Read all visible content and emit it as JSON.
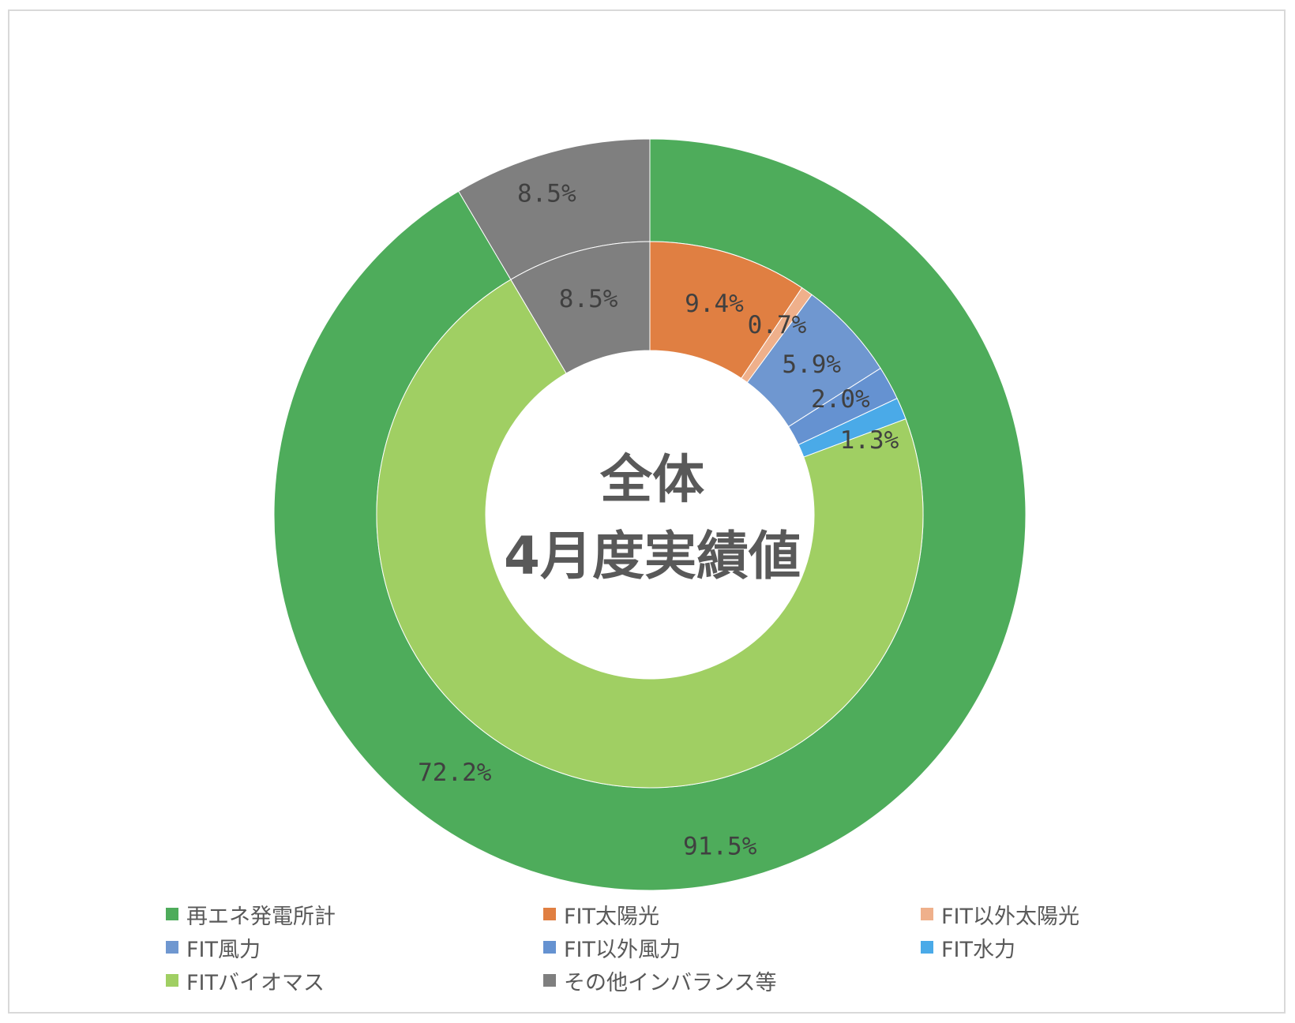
{
  "chart_data": {
    "type": "pie",
    "style": "nested-donut",
    "center_text": [
      "全体",
      "4月度実績値"
    ],
    "rings": [
      {
        "ring": "outer",
        "slices": [
          {
            "name": "再エネ発電所計",
            "value": 91.5,
            "label": "91.5%",
            "color": "#4eac5b"
          },
          {
            "name": "その他インバランス等",
            "value": 8.5,
            "label": "8.5%",
            "color": "#7f7f7f"
          }
        ]
      },
      {
        "ring": "inner",
        "slices": [
          {
            "name": "FIT太陽光",
            "value": 9.4,
            "label": "9.4%",
            "color": "#e07f42"
          },
          {
            "name": "FIT以外太陽光",
            "value": 0.7,
            "label": "0.7%",
            "color": "#efb08b"
          },
          {
            "name": "FIT風力",
            "value": 5.9,
            "label": "5.9%",
            "color": "#6f97d0"
          },
          {
            "name": "FIT以外風力",
            "value": 2.0,
            "label": "2.0%",
            "color": "#6592d1"
          },
          {
            "name": "FIT水力",
            "value": 1.3,
            "label": "1.3%",
            "color": "#4aaae8"
          },
          {
            "name": "FITバイオマス",
            "value": 72.2,
            "label": "72.2%",
            "color": "#a0cf63"
          },
          {
            "name": "その他インバランス等",
            "value": 8.5,
            "label": "8.5%",
            "color": "#7f7f7f"
          }
        ]
      }
    ],
    "legend": {
      "placement": "bottom",
      "items": [
        {
          "name": "再エネ発電所計",
          "color": "#4eac5b"
        },
        {
          "name": "FIT太陽光",
          "color": "#e07f42"
        },
        {
          "name": "FIT以外太陽光",
          "color": "#efb08b"
        },
        {
          "name": "FIT風力",
          "color": "#6f97d0"
        },
        {
          "name": "FIT以外風力",
          "color": "#6592d1"
        },
        {
          "name": "FIT水力",
          "color": "#4aaae8"
        },
        {
          "name": "FITバイオマス",
          "color": "#a0cf63"
        },
        {
          "name": "その他インバランス等",
          "color": "#7f7f7f"
        }
      ]
    }
  }
}
